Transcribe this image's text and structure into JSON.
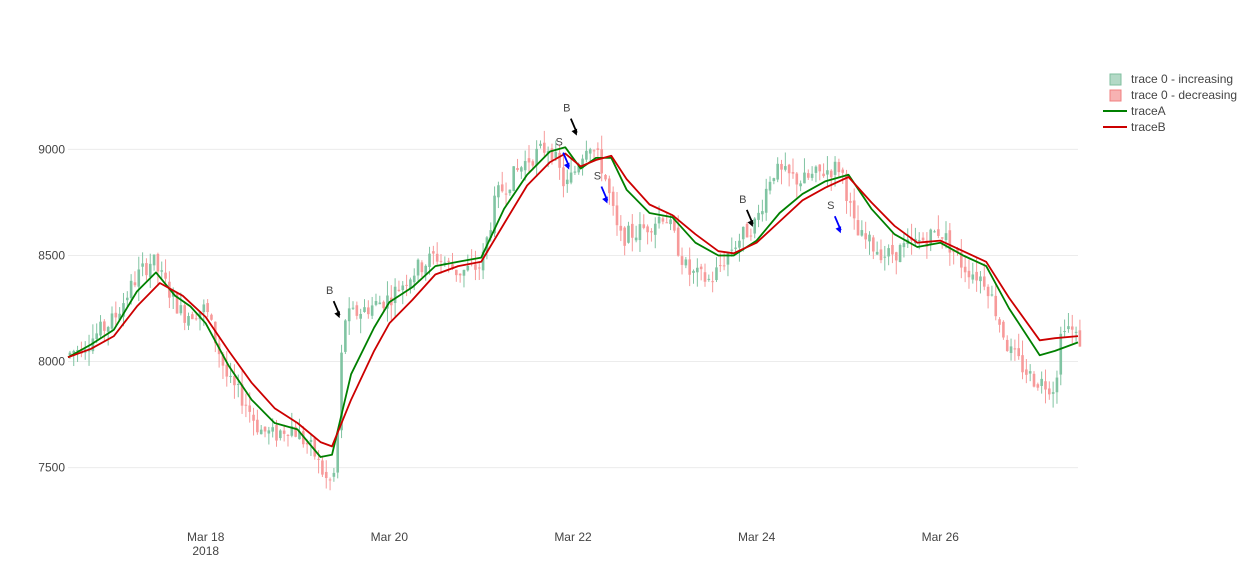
{
  "chart_data": {
    "type": "candlestick",
    "ylim": [
      7300,
      9280
    ],
    "y_ticks": [
      7500,
      8000,
      8500,
      9000
    ],
    "x_range": [
      "2018-03-16T12:00",
      "2018-03-27T12:00"
    ],
    "x_ticks": [
      {
        "t": "2018-03-18T00:00",
        "label": "Mar 18",
        "sublabel": "2018"
      },
      {
        "t": "2018-03-20T00:00",
        "label": "Mar 20"
      },
      {
        "t": "2018-03-22T00:00",
        "label": "Mar 22"
      },
      {
        "t": "2018-03-24T00:00",
        "label": "Mar 24"
      },
      {
        "t": "2018-03-26T00:00",
        "label": "Mar 26"
      }
    ],
    "grid": true,
    "legend_position": "top-right",
    "legend": [
      {
        "name": "trace 0 - increasing",
        "kind": "box",
        "fill": "#b3d9c6",
        "stroke": "#7fbf9f"
      },
      {
        "name": "trace 0 - decreasing",
        "kind": "box",
        "fill": "#f7b2b2",
        "stroke": "#f08080"
      },
      {
        "name": "traceA",
        "kind": "line",
        "color": "#008000"
      },
      {
        "name": "traceB",
        "kind": "line",
        "color": "#cc0000"
      }
    ],
    "candles": {
      "increasing_color": "#80c4a2",
      "decreasing_color": "#f79a9a",
      "close_anchors": [
        [
          "2018-03-16T12:00",
          8030
        ],
        [
          "2018-03-16T19:00",
          8120
        ],
        [
          "2018-03-17T00:00",
          8200
        ],
        [
          "2018-03-17T06:00",
          8400
        ],
        [
          "2018-03-17T10:00",
          8480
        ],
        [
          "2018-03-17T13:00",
          8380
        ],
        [
          "2018-03-17T18:00",
          8220
        ],
        [
          "2018-03-18T00:00",
          8250
        ],
        [
          "2018-03-18T06:00",
          7900
        ],
        [
          "2018-03-18T10:00",
          7820
        ],
        [
          "2018-03-18T14:00",
          7680
        ],
        [
          "2018-03-18T18:00",
          7650
        ],
        [
          "2018-03-18T22:00",
          7700
        ],
        [
          "2018-03-19T04:00",
          7580
        ],
        [
          "2018-03-19T08:00",
          7420
        ],
        [
          "2018-03-19T10:00",
          7480
        ],
        [
          "2018-03-19T12:00",
          8200
        ],
        [
          "2018-03-19T18:00",
          8250
        ],
        [
          "2018-03-20T00:00",
          8300
        ],
        [
          "2018-03-20T06:00",
          8420
        ],
        [
          "2018-03-20T12:00",
          8500
        ],
        [
          "2018-03-20T18:00",
          8420
        ],
        [
          "2018-03-21T00:00",
          8450
        ],
        [
          "2018-03-21T04:00",
          8780
        ],
        [
          "2018-03-21T12:00",
          8950
        ],
        [
          "2018-03-21T18:00",
          9020
        ],
        [
          "2018-03-21T22:00",
          8820
        ],
        [
          "2018-03-22T00:00",
          8880
        ],
        [
          "2018-03-22T04:00",
          9050
        ],
        [
          "2018-03-22T08:00",
          8900
        ],
        [
          "2018-03-22T12:00",
          8580
        ],
        [
          "2018-03-22T18:00",
          8620
        ],
        [
          "2018-03-23T00:00",
          8700
        ],
        [
          "2018-03-23T06:00",
          8420
        ],
        [
          "2018-03-23T12:00",
          8380
        ],
        [
          "2018-03-23T18:00",
          8550
        ],
        [
          "2018-03-24T00:00",
          8660
        ],
        [
          "2018-03-24T04:00",
          8900
        ],
        [
          "2018-03-24T12:00",
          8850
        ],
        [
          "2018-03-24T18:00",
          8900
        ],
        [
          "2018-03-24T22:00",
          8920
        ],
        [
          "2018-03-25T02:00",
          8600
        ],
        [
          "2018-03-25T10:00",
          8500
        ],
        [
          "2018-03-25T18:00",
          8560
        ],
        [
          "2018-03-26T00:00",
          8620
        ],
        [
          "2018-03-26T06:00",
          8450
        ],
        [
          "2018-03-26T12:00",
          8380
        ],
        [
          "2018-03-26T18:00",
          8050
        ],
        [
          "2018-03-27T00:00",
          7920
        ],
        [
          "2018-03-27T06:00",
          7880
        ],
        [
          "2018-03-27T08:00",
          8200
        ],
        [
          "2018-03-27T12:00",
          8100
        ]
      ]
    },
    "series": [
      {
        "name": "traceA",
        "color": "#008000",
        "points": [
          [
            "2018-03-16T12:00",
            8020
          ],
          [
            "2018-03-16T18:00",
            8080
          ],
          [
            "2018-03-17T00:00",
            8150
          ],
          [
            "2018-03-17T06:00",
            8330
          ],
          [
            "2018-03-17T11:00",
            8420
          ],
          [
            "2018-03-17T16:00",
            8310
          ],
          [
            "2018-03-17T20:00",
            8260
          ],
          [
            "2018-03-18T00:00",
            8180
          ],
          [
            "2018-03-18T06:00",
            7980
          ],
          [
            "2018-03-18T12:00",
            7820
          ],
          [
            "2018-03-18T18:00",
            7710
          ],
          [
            "2018-03-19T00:00",
            7680
          ],
          [
            "2018-03-19T06:00",
            7550
          ],
          [
            "2018-03-19T09:00",
            7560
          ],
          [
            "2018-03-19T14:00",
            7940
          ],
          [
            "2018-03-19T20:00",
            8160
          ],
          [
            "2018-03-20T00:00",
            8280
          ],
          [
            "2018-03-20T06:00",
            8350
          ],
          [
            "2018-03-20T12:00",
            8450
          ],
          [
            "2018-03-20T18:00",
            8470
          ],
          [
            "2018-03-21T00:00",
            8490
          ],
          [
            "2018-03-21T06:00",
            8720
          ],
          [
            "2018-03-21T12:00",
            8880
          ],
          [
            "2018-03-21T18:00",
            8990
          ],
          [
            "2018-03-21T22:00",
            9010
          ],
          [
            "2018-03-22T02:00",
            8910
          ],
          [
            "2018-03-22T06:00",
            8960
          ],
          [
            "2018-03-22T10:00",
            8960
          ],
          [
            "2018-03-22T14:00",
            8810
          ],
          [
            "2018-03-22T20:00",
            8700
          ],
          [
            "2018-03-23T02:00",
            8680
          ],
          [
            "2018-03-23T08:00",
            8560
          ],
          [
            "2018-03-23T14:00",
            8500
          ],
          [
            "2018-03-23T18:00",
            8500
          ],
          [
            "2018-03-24T00:00",
            8570
          ],
          [
            "2018-03-24T06:00",
            8700
          ],
          [
            "2018-03-24T12:00",
            8790
          ],
          [
            "2018-03-24T18:00",
            8850
          ],
          [
            "2018-03-25T00:00",
            8880
          ],
          [
            "2018-03-25T06:00",
            8720
          ],
          [
            "2018-03-25T12:00",
            8600
          ],
          [
            "2018-03-25T18:00",
            8540
          ],
          [
            "2018-03-26T00:00",
            8560
          ],
          [
            "2018-03-26T06:00",
            8500
          ],
          [
            "2018-03-26T12:00",
            8450
          ],
          [
            "2018-03-26T18:00",
            8250
          ],
          [
            "2018-03-27T02:00",
            8030
          ],
          [
            "2018-03-27T06:00",
            8050
          ],
          [
            "2018-03-27T12:00",
            8090
          ]
        ]
      },
      {
        "name": "traceB",
        "color": "#cc0000",
        "points": [
          [
            "2018-03-16T12:00",
            8020
          ],
          [
            "2018-03-16T18:00",
            8060
          ],
          [
            "2018-03-17T00:00",
            8120
          ],
          [
            "2018-03-17T06:00",
            8260
          ],
          [
            "2018-03-17T12:00",
            8370
          ],
          [
            "2018-03-17T18:00",
            8310
          ],
          [
            "2018-03-18T00:00",
            8210
          ],
          [
            "2018-03-18T06:00",
            8050
          ],
          [
            "2018-03-18T12:00",
            7900
          ],
          [
            "2018-03-18T18:00",
            7780
          ],
          [
            "2018-03-19T00:00",
            7710
          ],
          [
            "2018-03-19T06:00",
            7620
          ],
          [
            "2018-03-19T09:00",
            7600
          ],
          [
            "2018-03-19T14:00",
            7820
          ],
          [
            "2018-03-19T20:00",
            8050
          ],
          [
            "2018-03-20T00:00",
            8180
          ],
          [
            "2018-03-20T06:00",
            8290
          ],
          [
            "2018-03-20T12:00",
            8410
          ],
          [
            "2018-03-20T18:00",
            8450
          ],
          [
            "2018-03-21T00:00",
            8470
          ],
          [
            "2018-03-21T06:00",
            8650
          ],
          [
            "2018-03-21T12:00",
            8830
          ],
          [
            "2018-03-21T18:00",
            8940
          ],
          [
            "2018-03-21T22:00",
            8980
          ],
          [
            "2018-03-22T02:00",
            8920
          ],
          [
            "2018-03-22T06:00",
            8950
          ],
          [
            "2018-03-22T10:00",
            8970
          ],
          [
            "2018-03-22T14:00",
            8860
          ],
          [
            "2018-03-22T20:00",
            8740
          ],
          [
            "2018-03-23T02:00",
            8690
          ],
          [
            "2018-03-23T08:00",
            8600
          ],
          [
            "2018-03-23T14:00",
            8520
          ],
          [
            "2018-03-23T18:00",
            8510
          ],
          [
            "2018-03-24T00:00",
            8560
          ],
          [
            "2018-03-24T06:00",
            8660
          ],
          [
            "2018-03-24T12:00",
            8760
          ],
          [
            "2018-03-24T18:00",
            8820
          ],
          [
            "2018-03-25T00:00",
            8870
          ],
          [
            "2018-03-25T06:00",
            8750
          ],
          [
            "2018-03-25T12:00",
            8640
          ],
          [
            "2018-03-25T18:00",
            8560
          ],
          [
            "2018-03-26T00:00",
            8570
          ],
          [
            "2018-03-26T06:00",
            8520
          ],
          [
            "2018-03-26T12:00",
            8470
          ],
          [
            "2018-03-26T18:00",
            8300
          ],
          [
            "2018-03-27T02:00",
            8100
          ],
          [
            "2018-03-27T06:00",
            8110
          ],
          [
            "2018-03-27T12:00",
            8120
          ]
        ]
      }
    ],
    "annotations": [
      {
        "text": "B",
        "t": "2018-03-19T11:00",
        "y": 8200,
        "color": "#000000"
      },
      {
        "text": "S",
        "t": "2018-03-21T23:00",
        "y": 8900,
        "color": "#0000ff"
      },
      {
        "text": "B",
        "t": "2018-03-22T01:00",
        "y": 9060,
        "color": "#000000"
      },
      {
        "text": "S",
        "t": "2018-03-22T09:00",
        "y": 8740,
        "color": "#0000ff"
      },
      {
        "text": "B",
        "t": "2018-03-23T23:00",
        "y": 8630,
        "color": "#000000"
      },
      {
        "text": "S",
        "t": "2018-03-24T22:00",
        "y": 8600,
        "color": "#0000ff"
      }
    ]
  }
}
